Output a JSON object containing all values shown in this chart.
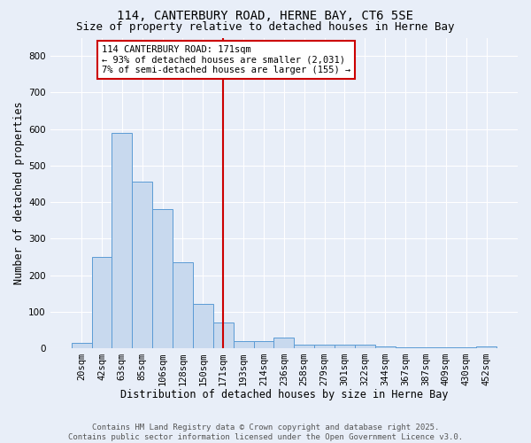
{
  "title_line1": "114, CANTERBURY ROAD, HERNE BAY, CT6 5SE",
  "title_line2": "Size of property relative to detached houses in Herne Bay",
  "xlabel": "Distribution of detached houses by size in Herne Bay",
  "ylabel": "Number of detached properties",
  "categories": [
    "20sqm",
    "42sqm",
    "63sqm",
    "85sqm",
    "106sqm",
    "128sqm",
    "150sqm",
    "171sqm",
    "193sqm",
    "214sqm",
    "236sqm",
    "258sqm",
    "279sqm",
    "301sqm",
    "322sqm",
    "344sqm",
    "367sqm",
    "387sqm",
    "409sqm",
    "430sqm",
    "452sqm"
  ],
  "values": [
    15,
    250,
    590,
    455,
    380,
    235,
    120,
    70,
    20,
    20,
    30,
    10,
    10,
    10,
    10,
    5,
    3,
    3,
    3,
    3,
    5
  ],
  "bar_color": "#c8d9ee",
  "bar_edge_color": "#5b9bd5",
  "vline_index": 7,
  "vline_color": "#cc0000",
  "annotation_text": "114 CANTERBURY ROAD: 171sqm\n← 93% of detached houses are smaller (2,031)\n7% of semi-detached houses are larger (155) →",
  "annotation_box_facecolor": "#ffffff",
  "annotation_box_edgecolor": "#cc0000",
  "ylim": [
    0,
    850
  ],
  "yticks": [
    0,
    100,
    200,
    300,
    400,
    500,
    600,
    700,
    800
  ],
  "background_color": "#e8eef8",
  "grid_color": "#ffffff",
  "footer_line1": "Contains HM Land Registry data © Crown copyright and database right 2025.",
  "footer_line2": "Contains public sector information licensed under the Open Government Licence v3.0.",
  "title_fontsize": 10,
  "subtitle_fontsize": 9,
  "axis_label_fontsize": 8.5,
  "tick_fontsize": 7.5,
  "annotation_fontsize": 7.5,
  "footer_fontsize": 6.5
}
